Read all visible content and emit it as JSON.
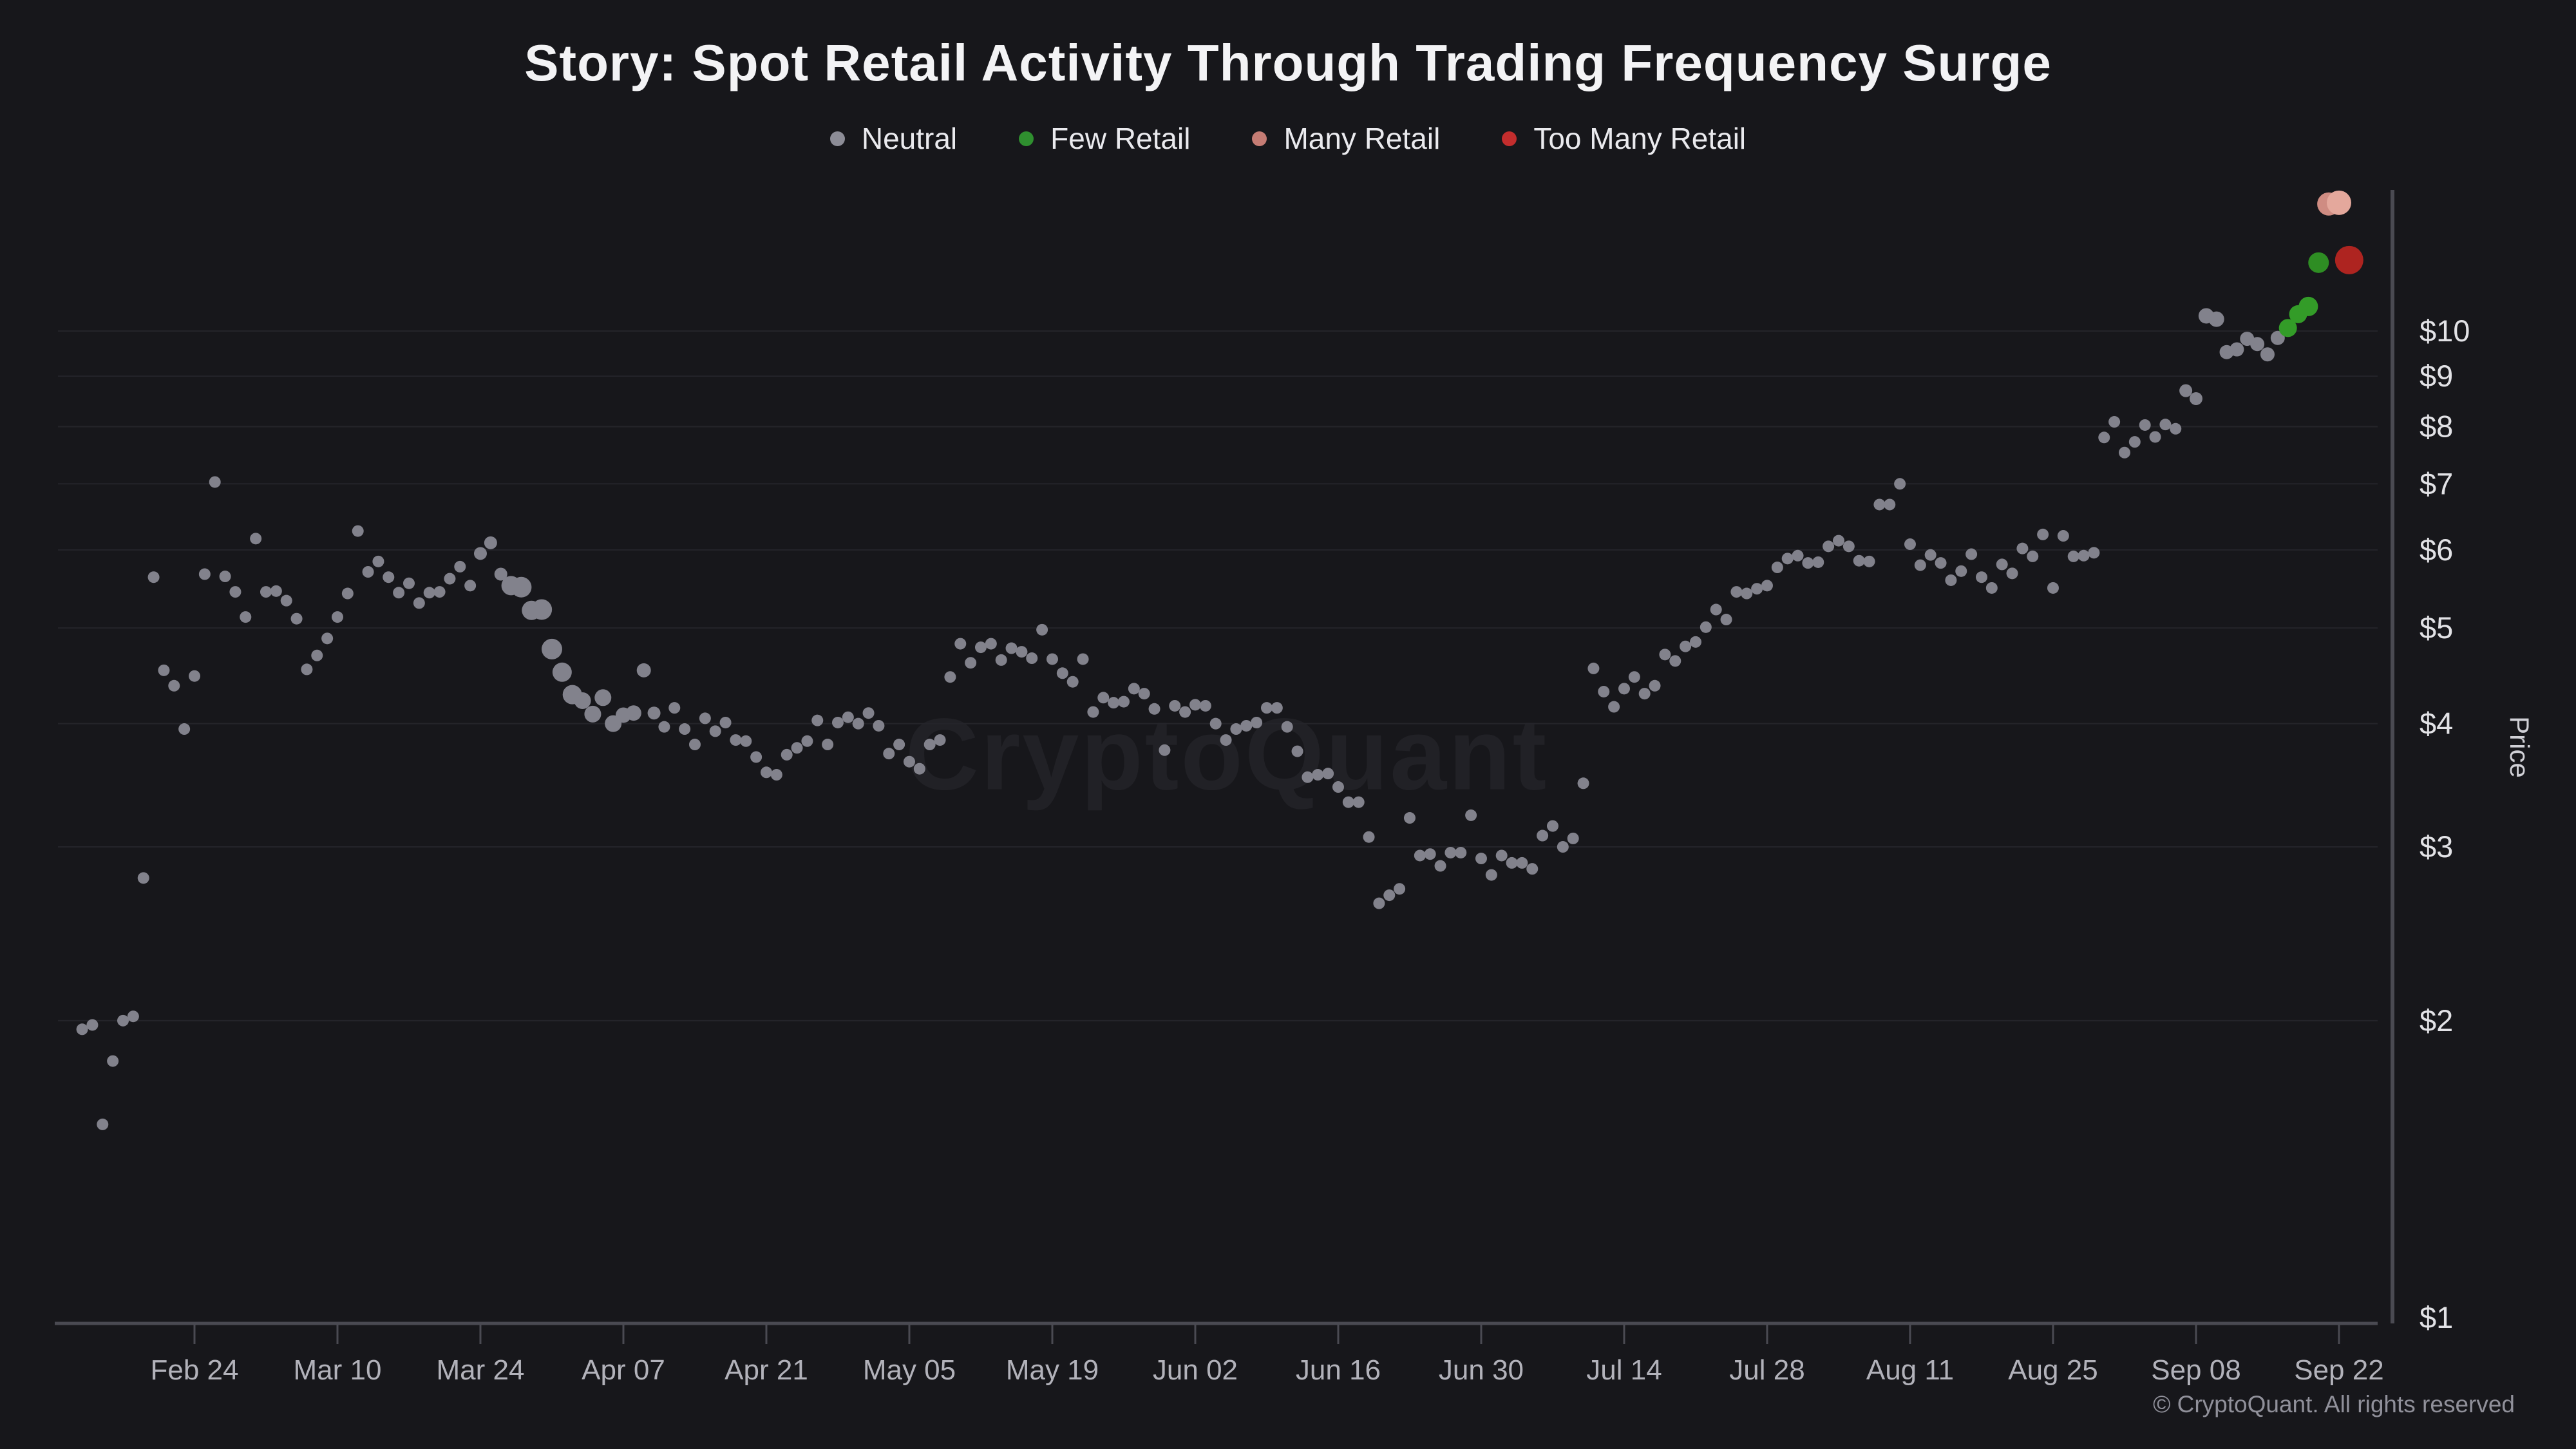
{
  "page": {
    "background": "#17171b"
  },
  "header": {
    "title": "Story: Spot Retail Activity Through Trading Frequency Surge"
  },
  "legend": {
    "items": [
      {
        "label": "Neutral",
        "color": "#8c8c96"
      },
      {
        "label": "Few Retail",
        "color": "#2f8f2f"
      },
      {
        "label": "Many Retail",
        "color": "#c57c74"
      },
      {
        "label": "Too Many Retail",
        "color": "#c32d2d"
      }
    ]
  },
  "watermark": {
    "text": "CryptoQuant"
  },
  "footer": {
    "copyright": "© CryptoQuant. All rights reserved"
  },
  "chart_data": {
    "type": "scatter",
    "title": "Story: Spot Retail Activity Through Trading Frequency Surge",
    "xlabel": "",
    "ylabel": "Price",
    "y_scale": "log",
    "grid": "horizontal",
    "legend_position": "top",
    "y_ticks": [
      {
        "label": "$1",
        "value": 1
      },
      {
        "label": "$2",
        "value": 2
      },
      {
        "label": "$3",
        "value": 3
      },
      {
        "label": "$4",
        "value": 4
      },
      {
        "label": "$5",
        "value": 5
      },
      {
        "label": "$6",
        "value": 6
      },
      {
        "label": "$7",
        "value": 7
      },
      {
        "label": "$8",
        "value": 8
      },
      {
        "label": "$9",
        "value": 9
      },
      {
        "label": "$10",
        "value": 10
      }
    ],
    "x_ticks": [
      "Feb 24",
      "Mar 10",
      "Mar 24",
      "Apr 07",
      "Apr 21",
      "May 05",
      "May 19",
      "Jun 02",
      "Jun 16",
      "Jun 30",
      "Jul 14",
      "Jul 28",
      "Aug 11",
      "Aug 25",
      "Sep 08",
      "Sep 22"
    ],
    "categories": {
      "n": {
        "name": "Neutral",
        "color": "#82828c"
      },
      "f": {
        "name": "Few Retail",
        "color": "#339c28"
      },
      "m": {
        "name": "Many Retail",
        "color": "#cf8c82"
      },
      "t": {
        "name": "Too Many Retail",
        "color": "#ae2420"
      }
    },
    "points": [
      [
        "Feb 13",
        1.96,
        9,
        "n"
      ],
      [
        "Feb 14",
        1.98,
        9,
        "n"
      ],
      [
        "Feb 15",
        1.57,
        9,
        "n"
      ],
      [
        "Feb 16",
        1.82,
        9,
        "n"
      ],
      [
        "Feb 17",
        2.0,
        9,
        "n"
      ],
      [
        "Feb 18",
        2.02,
        9,
        "n"
      ],
      [
        "Feb 19",
        2.79,
        9,
        "n"
      ],
      [
        "Feb 20",
        5.63,
        9,
        "n"
      ],
      [
        "Feb 21",
        4.53,
        9,
        "n"
      ],
      [
        "Feb 22",
        4.37,
        9,
        "n"
      ],
      [
        "Feb 23",
        3.95,
        9,
        "n"
      ],
      [
        "Feb 24",
        4.47,
        9,
        "n"
      ],
      [
        "Feb 25",
        5.67,
        9,
        "n"
      ],
      [
        "Feb 26",
        7.03,
        9,
        "n"
      ],
      [
        "Feb 27",
        5.64,
        9,
        "n"
      ],
      [
        "Feb 28",
        5.44,
        9,
        "n"
      ],
      [
        "Mar 01",
        5.13,
        9,
        "n"
      ],
      [
        "Mar 02",
        6.16,
        9,
        "n"
      ],
      [
        "Mar 03",
        5.44,
        9,
        "n"
      ],
      [
        "Mar 04",
        5.45,
        9,
        "n"
      ],
      [
        "Mar 05",
        5.33,
        9,
        "n"
      ],
      [
        "Mar 06",
        5.11,
        9,
        "n"
      ],
      [
        "Mar 07",
        4.54,
        9,
        "n"
      ],
      [
        "Mar 08",
        4.69,
        9,
        "n"
      ],
      [
        "Mar 09",
        4.88,
        9,
        "n"
      ],
      [
        "Mar 10",
        5.13,
        9,
        "n"
      ],
      [
        "Mar 11",
        5.42,
        9,
        "n"
      ],
      [
        "Mar 12",
        6.27,
        9,
        "n"
      ],
      [
        "Mar 13",
        5.7,
        9,
        "n"
      ],
      [
        "Mar 14",
        5.84,
        9,
        "n"
      ],
      [
        "Mar 15",
        5.63,
        9,
        "n"
      ],
      [
        "Mar 16",
        5.43,
        9,
        "n"
      ],
      [
        "Mar 17",
        5.55,
        9,
        "n"
      ],
      [
        "Mar 18",
        5.3,
        9,
        "n"
      ],
      [
        "Mar 19",
        5.43,
        9,
        "n"
      ],
      [
        "Mar 20",
        5.44,
        9,
        "n"
      ],
      [
        "Mar 21",
        5.61,
        9,
        "n"
      ],
      [
        "Mar 22",
        5.77,
        9,
        "n"
      ],
      [
        "Mar 23",
        5.52,
        9,
        "n"
      ],
      [
        "Mar 24",
        5.95,
        10,
        "n"
      ],
      [
        "Mar 25",
        6.1,
        10,
        "n"
      ],
      [
        "Mar 26",
        5.67,
        10,
        "n"
      ],
      [
        "Mar 27",
        5.52,
        15,
        "n"
      ],
      [
        "Mar 28",
        5.5,
        16,
        "n"
      ],
      [
        "Mar 29",
        5.21,
        15,
        "n"
      ],
      [
        "Mar 30",
        5.22,
        16,
        "n"
      ],
      [
        "Mar 31",
        4.76,
        16,
        "n"
      ],
      [
        "Apr 01",
        4.51,
        15,
        "n"
      ],
      [
        "Apr 02",
        4.28,
        15,
        "n"
      ],
      [
        "Apr 03",
        4.22,
        13,
        "n"
      ],
      [
        "Apr 04",
        4.09,
        13,
        "n"
      ],
      [
        "Apr 05",
        4.25,
        13,
        "n"
      ],
      [
        "Apr 06",
        4.0,
        13,
        "n"
      ],
      [
        "Apr 07",
        4.08,
        12,
        "n"
      ],
      [
        "Apr 08",
        4.1,
        12,
        "n"
      ],
      [
        "Apr 09",
        4.53,
        11,
        "n"
      ],
      [
        "Apr 10",
        4.1,
        10,
        "n"
      ],
      [
        "Apr 11",
        3.97,
        9,
        "n"
      ],
      [
        "Apr 12",
        4.15,
        9,
        "n"
      ],
      [
        "Apr 13",
        3.95,
        9,
        "n"
      ],
      [
        "Apr 14",
        3.81,
        9,
        "n"
      ],
      [
        "Apr 15",
        4.05,
        9,
        "n"
      ],
      [
        "Apr 16",
        3.93,
        9,
        "n"
      ],
      [
        "Apr 17",
        4.01,
        9,
        "n"
      ],
      [
        "Apr 18",
        3.85,
        9,
        "n"
      ],
      [
        "Apr 19",
        3.84,
        9,
        "n"
      ],
      [
        "Apr 20",
        3.7,
        9,
        "n"
      ],
      [
        "Apr 21",
        3.57,
        9,
        "n"
      ],
      [
        "Apr 22",
        3.55,
        9,
        "n"
      ],
      [
        "Apr 23",
        3.72,
        9,
        "n"
      ],
      [
        "Apr 24",
        3.78,
        9,
        "n"
      ],
      [
        "Apr 25",
        3.84,
        9,
        "n"
      ],
      [
        "Apr 26",
        4.03,
        9,
        "n"
      ],
      [
        "Apr 27",
        3.81,
        9,
        "n"
      ],
      [
        "Apr 28",
        4.01,
        9,
        "n"
      ],
      [
        "Apr 29",
        4.06,
        9,
        "n"
      ],
      [
        "Apr 30",
        4.0,
        9,
        "n"
      ],
      [
        "May 01",
        4.1,
        9,
        "n"
      ],
      [
        "May 02",
        3.98,
        9,
        "n"
      ],
      [
        "May 03",
        3.73,
        9,
        "n"
      ],
      [
        "May 04",
        3.81,
        9,
        "n"
      ],
      [
        "May 05",
        3.66,
        9,
        "n"
      ],
      [
        "May 06",
        3.6,
        9,
        "n"
      ],
      [
        "May 07",
        3.81,
        9,
        "n"
      ],
      [
        "May 08",
        3.85,
        9,
        "n"
      ],
      [
        "May 09",
        4.46,
        9,
        "n"
      ],
      [
        "May 10",
        4.82,
        9,
        "n"
      ],
      [
        "May 11",
        4.61,
        9,
        "n"
      ],
      [
        "May 12",
        4.78,
        9,
        "n"
      ],
      [
        "May 13",
        4.82,
        9,
        "n"
      ],
      [
        "May 14",
        4.64,
        9,
        "n"
      ],
      [
        "May 15",
        4.77,
        9,
        "n"
      ],
      [
        "May 16",
        4.73,
        9,
        "n"
      ],
      [
        "May 17",
        4.66,
        9,
        "n"
      ],
      [
        "May 18",
        4.98,
        9,
        "n"
      ],
      [
        "May 19",
        4.65,
        9,
        "n"
      ],
      [
        "May 20",
        4.5,
        9,
        "n"
      ],
      [
        "May 21",
        4.41,
        9,
        "n"
      ],
      [
        "May 22",
        4.65,
        9,
        "n"
      ],
      [
        "May 23",
        4.11,
        9,
        "n"
      ],
      [
        "May 24",
        4.25,
        9,
        "n"
      ],
      [
        "May 25",
        4.2,
        9,
        "n"
      ],
      [
        "May 26",
        4.21,
        9,
        "n"
      ],
      [
        "May 27",
        4.34,
        9,
        "n"
      ],
      [
        "May 28",
        4.29,
        9,
        "n"
      ],
      [
        "May 29",
        4.14,
        9,
        "n"
      ],
      [
        "May 30",
        3.76,
        9,
        "n"
      ],
      [
        "May 31",
        4.17,
        9,
        "n"
      ],
      [
        "Jun 01",
        4.11,
        9,
        "n"
      ],
      [
        "Jun 02",
        4.18,
        9,
        "n"
      ],
      [
        "Jun 03",
        4.17,
        9,
        "n"
      ],
      [
        "Jun 04",
        4.0,
        9,
        "n"
      ],
      [
        "Jun 05",
        3.85,
        9,
        "n"
      ],
      [
        "Jun 06",
        3.95,
        9,
        "n"
      ],
      [
        "Jun 07",
        3.98,
        9,
        "n"
      ],
      [
        "Jun 08",
        4.01,
        9,
        "n"
      ],
      [
        "Jun 09",
        4.15,
        9,
        "n"
      ],
      [
        "Jun 10",
        4.15,
        9,
        "n"
      ],
      [
        "Jun 11",
        3.97,
        9,
        "n"
      ],
      [
        "Jun 12",
        3.75,
        9,
        "n"
      ],
      [
        "Jun 13",
        3.53,
        9,
        "n"
      ],
      [
        "Jun 14",
        3.55,
        9,
        "n"
      ],
      [
        "Jun 15",
        3.56,
        9,
        "n"
      ],
      [
        "Jun 16",
        3.45,
        9,
        "n"
      ],
      [
        "Jun 17",
        3.33,
        9,
        "n"
      ],
      [
        "Jun 18",
        3.33,
        9,
        "n"
      ],
      [
        "Jun 19",
        3.07,
        9,
        "n"
      ],
      [
        "Jun 20",
        2.63,
        9,
        "n"
      ],
      [
        "Jun 21",
        2.68,
        9,
        "n"
      ],
      [
        "Jun 22",
        2.72,
        9,
        "n"
      ],
      [
        "Jun 23",
        3.21,
        9,
        "n"
      ],
      [
        "Jun 24",
        2.94,
        9,
        "n"
      ],
      [
        "Jun 25",
        2.95,
        9,
        "n"
      ],
      [
        "Jun 26",
        2.87,
        9,
        "n"
      ],
      [
        "Jun 27",
        2.96,
        9,
        "n"
      ],
      [
        "Jun 28",
        2.96,
        9,
        "n"
      ],
      [
        "Jun 29",
        3.23,
        9,
        "n"
      ],
      [
        "Jun 30",
        2.92,
        9,
        "n"
      ],
      [
        "Jul 01",
        2.81,
        9,
        "n"
      ],
      [
        "Jul 02",
        2.94,
        9,
        "n"
      ],
      [
        "Jul 03",
        2.89,
        9,
        "n"
      ],
      [
        "Jul 04",
        2.89,
        9,
        "n"
      ],
      [
        "Jul 05",
        2.85,
        9,
        "n"
      ],
      [
        "Jul 06",
        3.08,
        9,
        "n"
      ],
      [
        "Jul 07",
        3.15,
        9,
        "n"
      ],
      [
        "Jul 08",
        3.0,
        9,
        "n"
      ],
      [
        "Jul 09",
        3.06,
        9,
        "n"
      ],
      [
        "Jul 10",
        3.48,
        9,
        "n"
      ],
      [
        "Jul 11",
        4.55,
        9,
        "n"
      ],
      [
        "Jul 12",
        4.31,
        9,
        "n"
      ],
      [
        "Jul 13",
        4.16,
        9,
        "n"
      ],
      [
        "Jul 14",
        4.34,
        9,
        "n"
      ],
      [
        "Jul 15",
        4.46,
        9,
        "n"
      ],
      [
        "Jul 16",
        4.29,
        9,
        "n"
      ],
      [
        "Jul 17",
        4.37,
        9,
        "n"
      ],
      [
        "Jul 18",
        4.7,
        9,
        "n"
      ],
      [
        "Jul 19",
        4.63,
        9,
        "n"
      ],
      [
        "Jul 20",
        4.79,
        9,
        "n"
      ],
      [
        "Jul 21",
        4.84,
        9,
        "n"
      ],
      [
        "Jul 22",
        5.01,
        9,
        "n"
      ],
      [
        "Jul 23",
        5.22,
        9,
        "n"
      ],
      [
        "Jul 24",
        5.1,
        9,
        "n"
      ],
      [
        "Jul 25",
        5.44,
        9,
        "n"
      ],
      [
        "Jul 26",
        5.42,
        9,
        "n"
      ],
      [
        "Jul 27",
        5.48,
        9,
        "n"
      ],
      [
        "Jul 28",
        5.52,
        9,
        "n"
      ],
      [
        "Jul 29",
        5.76,
        9,
        "n"
      ],
      [
        "Jul 30",
        5.88,
        9,
        "n"
      ],
      [
        "Jul 31",
        5.92,
        9,
        "n"
      ],
      [
        "Aug 01",
        5.82,
        9,
        "n"
      ],
      [
        "Aug 02",
        5.83,
        9,
        "n"
      ],
      [
        "Aug 03",
        6.05,
        9,
        "n"
      ],
      [
        "Aug 04",
        6.13,
        9,
        "n"
      ],
      [
        "Aug 05",
        6.05,
        9,
        "n"
      ],
      [
        "Aug 06",
        5.85,
        9,
        "n"
      ],
      [
        "Aug 07",
        5.84,
        9,
        "n"
      ],
      [
        "Aug 08",
        6.67,
        9,
        "n"
      ],
      [
        "Aug 09",
        6.67,
        9,
        "n"
      ],
      [
        "Aug 10",
        7.0,
        9,
        "n"
      ],
      [
        "Aug 11",
        6.08,
        9,
        "n"
      ],
      [
        "Aug 12",
        5.79,
        9,
        "n"
      ],
      [
        "Aug 13",
        5.93,
        9,
        "n"
      ],
      [
        "Aug 14",
        5.82,
        9,
        "n"
      ],
      [
        "Aug 15",
        5.59,
        9,
        "n"
      ],
      [
        "Aug 16",
        5.71,
        9,
        "n"
      ],
      [
        "Aug 17",
        5.94,
        9,
        "n"
      ],
      [
        "Aug 18",
        5.63,
        9,
        "n"
      ],
      [
        "Aug 19",
        5.49,
        9,
        "n"
      ],
      [
        "Aug 20",
        5.8,
        9,
        "n"
      ],
      [
        "Aug 21",
        5.68,
        9,
        "n"
      ],
      [
        "Aug 22",
        6.02,
        9,
        "n"
      ],
      [
        "Aug 23",
        5.91,
        9,
        "n"
      ],
      [
        "Aug 24",
        6.22,
        9,
        "n"
      ],
      [
        "Aug 25",
        5.49,
        9,
        "n"
      ],
      [
        "Aug 26",
        6.2,
        9,
        "n"
      ],
      [
        "Aug 27",
        5.91,
        9,
        "n"
      ],
      [
        "Aug 28",
        5.92,
        9,
        "n"
      ],
      [
        "Aug 29",
        5.96,
        9,
        "n"
      ],
      [
        "Aug 30",
        7.8,
        9,
        "n"
      ],
      [
        "Aug 31",
        8.09,
        9,
        "n"
      ],
      [
        "Sep 01",
        7.53,
        9,
        "n"
      ],
      [
        "Sep 02",
        7.72,
        9,
        "n"
      ],
      [
        "Sep 03",
        8.03,
        9,
        "n"
      ],
      [
        "Sep 04",
        7.81,
        9,
        "n"
      ],
      [
        "Sep 05",
        8.04,
        9,
        "n"
      ],
      [
        "Sep 06",
        7.96,
        9,
        "n"
      ],
      [
        "Sep 07",
        8.7,
        10,
        "n"
      ],
      [
        "Sep 08",
        8.54,
        10,
        "n"
      ],
      [
        "Sep 09",
        10.36,
        12,
        "n"
      ],
      [
        "Sep 10",
        10.28,
        12,
        "n"
      ],
      [
        "Sep 11",
        9.52,
        11,
        "n"
      ],
      [
        "Sep 12",
        9.58,
        11,
        "n"
      ],
      [
        "Sep 13",
        9.82,
        11,
        "n"
      ],
      [
        "Sep 14",
        9.7,
        11,
        "n"
      ],
      [
        "Sep 15",
        9.47,
        11,
        "n"
      ],
      [
        "Sep 16",
        9.84,
        11,
        "n"
      ],
      [
        "Sep 17",
        10.07,
        14,
        "f"
      ],
      [
        "Sep 18",
        10.4,
        14,
        "f"
      ],
      [
        "Sep 19",
        10.59,
        15,
        "f"
      ],
      [
        "Sep 20",
        11.73,
        16,
        "f",
        "#2e8d23"
      ],
      [
        "Sep 21",
        13.45,
        18,
        "m"
      ],
      [
        "Sep 22",
        13.49,
        19,
        "m",
        "#e4a89c"
      ],
      [
        "Sep 23",
        11.8,
        22,
        "t"
      ]
    ],
    "axis_colors": {
      "axis_line": "#4a4a52",
      "grid_line": "#24242a",
      "y_label": "#e2e2e6",
      "x_label": "#b2b2ba",
      "axis_title": "#d0d0d6"
    }
  }
}
